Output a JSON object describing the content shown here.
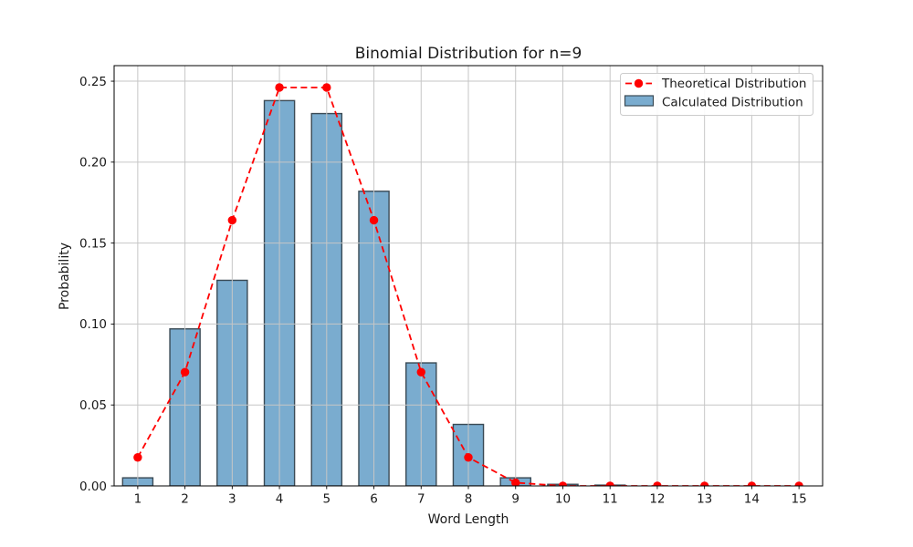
{
  "chart_data": {
    "type": "bar",
    "title": "Binomial Distribution for n=9",
    "xlabel": "Word Length",
    "ylabel": "Probability",
    "x": [
      1,
      2,
      3,
      4,
      5,
      6,
      7,
      8,
      9,
      10,
      11,
      12,
      13,
      14,
      15
    ],
    "xticks": [
      1,
      2,
      3,
      4,
      5,
      6,
      7,
      8,
      9,
      10,
      11,
      12,
      13,
      14,
      15
    ],
    "yticks": [
      0.0,
      0.05,
      0.1,
      0.15,
      0.2,
      0.25
    ],
    "xlim": [
      0.5,
      15.5
    ],
    "ylim": [
      0,
      0.2596
    ],
    "grid": true,
    "legend_position": "upper right",
    "series": [
      {
        "name": "Theoretical Distribution",
        "type": "line",
        "style": "dashed",
        "marker": "circle",
        "color": "#ff0000",
        "values": [
          0.0176,
          0.0703,
          0.1641,
          0.2461,
          0.2461,
          0.1641,
          0.0703,
          0.0176,
          0.002,
          0.0,
          0.0,
          0.0,
          0.0,
          0.0,
          0.0
        ]
      },
      {
        "name": "Calculated Distribution",
        "type": "bar",
        "color": "#7aaccf",
        "edge_color": "#3a4a55",
        "values": [
          0.005,
          0.097,
          0.127,
          0.238,
          0.23,
          0.182,
          0.076,
          0.038,
          0.005,
          0.001,
          0.0005,
          0.0,
          0.0,
          0.0,
          0.0
        ]
      }
    ],
    "grid_color": "#c6c6c6",
    "spine_color": "#000000"
  }
}
